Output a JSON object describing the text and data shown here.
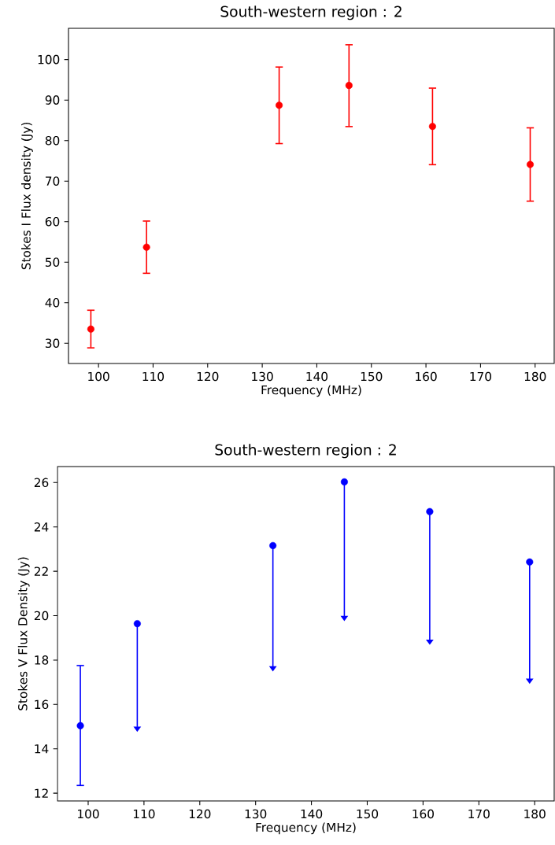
{
  "chart_data": [
    {
      "type": "scatter",
      "title": "South-western region : 2",
      "xlabel": "Frequency (MHz)",
      "ylabel": "Stokes I Flux density (Jy)",
      "color": "#ff0000",
      "marker": "circle",
      "x": [
        98.6,
        108.8,
        133.1,
        145.9,
        161.2,
        179.1
      ],
      "values": [
        33.5,
        53.7,
        88.7,
        93.6,
        83.5,
        74.1
      ],
      "errors": [
        [
          28.7,
          38.3
        ],
        [
          47.1,
          60.3
        ],
        [
          79.1,
          98.3
        ],
        [
          83.3,
          103.8
        ],
        [
          73.9,
          93.1
        ],
        [
          64.9,
          83.3
        ]
      ],
      "xlim": [
        94.5,
        183.5
      ],
      "ylim": [
        25,
        107.7
      ],
      "xticks": [
        100,
        110,
        120,
        130,
        140,
        150,
        160,
        170,
        180
      ],
      "yticks": [
        30,
        40,
        50,
        60,
        70,
        80,
        90,
        100
      ]
    },
    {
      "type": "scatter",
      "title": "South-western region : 2",
      "xlabel": "Frequency (MHz)",
      "ylabel": "Stokes V Flux Density (Jy)",
      "color": "#0000ff",
      "marker": "circle",
      "x": [
        98.6,
        108.8,
        133.1,
        145.9,
        161.2,
        179.1
      ],
      "values": [
        15.04,
        19.64,
        23.16,
        26.03,
        24.69,
        22.42
      ],
      "errors": [
        [
          12.32,
          17.78
        ],
        [
          15.0,
          19.64
        ],
        [
          17.72,
          23.16
        ],
        [
          19.99,
          26.03
        ],
        [
          18.92,
          24.69
        ],
        [
          17.16,
          22.42
        ]
      ],
      "xlim": [
        94.5,
        183.5
      ],
      "ylim": [
        11.65,
        26.72
      ],
      "xticks": [
        100,
        110,
        120,
        130,
        140,
        150,
        160,
        170,
        180
      ],
      "yticks": [
        12,
        14,
        16,
        18,
        20,
        22,
        24,
        26
      ]
    }
  ]
}
